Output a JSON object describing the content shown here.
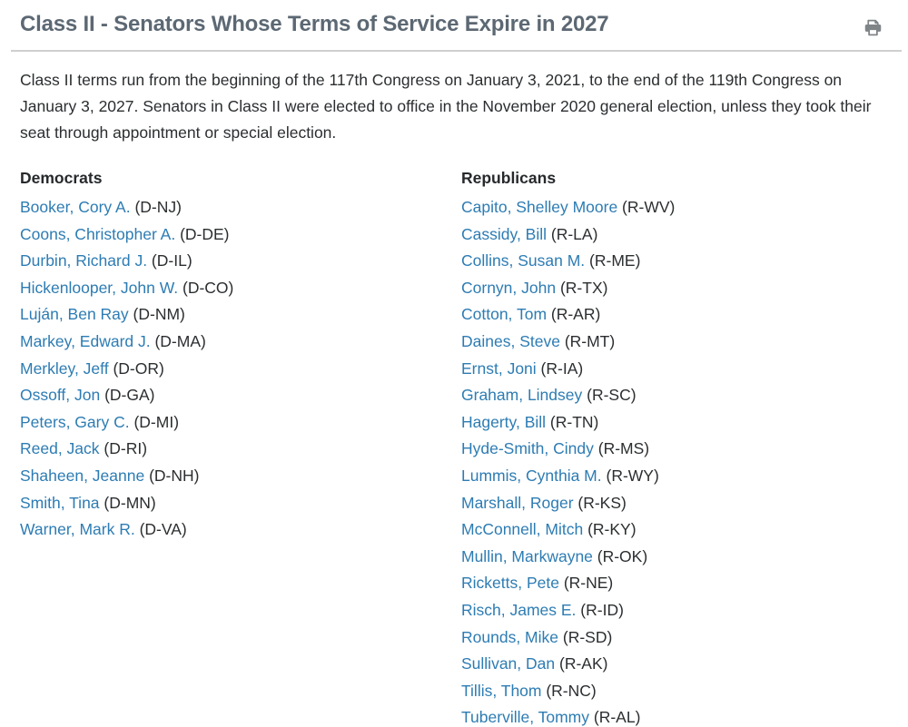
{
  "page": {
    "title": "Class II - Senators Whose Terms of Service Expire in 2027",
    "intro": "Class II terms run from the beginning of the 117th Congress on January 3, 2021, to the end of the 119th Congress on January 3, 2027. Senators in Class II were elected to office in the November 2020 general election, unless they took their seat through appointment or special election."
  },
  "icons": {
    "print": "printer-icon"
  },
  "colors": {
    "title": "#5c6873",
    "link": "#2d7cb3",
    "text": "#2b2e30",
    "divider": "#cfcfcf",
    "icon": "#7f8487"
  },
  "columns": [
    {
      "header": "Democrats",
      "members": [
        {
          "name": "Booker, Cory A.",
          "party_state": "(D-NJ)"
        },
        {
          "name": "Coons, Christopher A.",
          "party_state": "(D-DE)"
        },
        {
          "name": "Durbin, Richard J.",
          "party_state": "(D-IL)"
        },
        {
          "name": "Hickenlooper, John W.",
          "party_state": "(D-CO)"
        },
        {
          "name": "Luján, Ben Ray",
          "party_state": "(D-NM)"
        },
        {
          "name": "Markey, Edward J.",
          "party_state": "(D-MA)"
        },
        {
          "name": "Merkley, Jeff",
          "party_state": "(D-OR)"
        },
        {
          "name": "Ossoff, Jon",
          "party_state": "(D-GA)"
        },
        {
          "name": "Peters, Gary C.",
          "party_state": "(D-MI)"
        },
        {
          "name": "Reed, Jack",
          "party_state": "(D-RI)"
        },
        {
          "name": "Shaheen, Jeanne",
          "party_state": "(D-NH)"
        },
        {
          "name": "Smith, Tina",
          "party_state": "(D-MN)"
        },
        {
          "name": "Warner, Mark R.",
          "party_state": "(D-VA)"
        }
      ]
    },
    {
      "header": "Republicans",
      "members": [
        {
          "name": "Capito, Shelley Moore",
          "party_state": "(R-WV)"
        },
        {
          "name": "Cassidy, Bill",
          "party_state": "(R-LA)"
        },
        {
          "name": "Collins, Susan M.",
          "party_state": "(R-ME)"
        },
        {
          "name": "Cornyn, John",
          "party_state": "(R-TX)"
        },
        {
          "name": "Cotton, Tom",
          "party_state": "(R-AR)"
        },
        {
          "name": "Daines, Steve",
          "party_state": "(R-MT)"
        },
        {
          "name": "Ernst, Joni",
          "party_state": "(R-IA)"
        },
        {
          "name": "Graham, Lindsey",
          "party_state": "(R-SC)"
        },
        {
          "name": "Hagerty, Bill",
          "party_state": "(R-TN)"
        },
        {
          "name": "Hyde-Smith, Cindy",
          "party_state": "(R-MS)"
        },
        {
          "name": "Lummis, Cynthia M.",
          "party_state": "(R-WY)"
        },
        {
          "name": "Marshall, Roger",
          "party_state": "(R-KS)"
        },
        {
          "name": "McConnell, Mitch",
          "party_state": "(R-KY)"
        },
        {
          "name": "Mullin, Markwayne",
          "party_state": "(R-OK)"
        },
        {
          "name": "Ricketts, Pete",
          "party_state": "(R-NE)"
        },
        {
          "name": "Risch, James E.",
          "party_state": "(R-ID)"
        },
        {
          "name": "Rounds, Mike",
          "party_state": "(R-SD)"
        },
        {
          "name": "Sullivan, Dan",
          "party_state": "(R-AK)"
        },
        {
          "name": "Tillis, Thom",
          "party_state": "(R-NC)"
        },
        {
          "name": "Tuberville, Tommy",
          "party_state": "(R-AL)"
        }
      ]
    }
  ]
}
